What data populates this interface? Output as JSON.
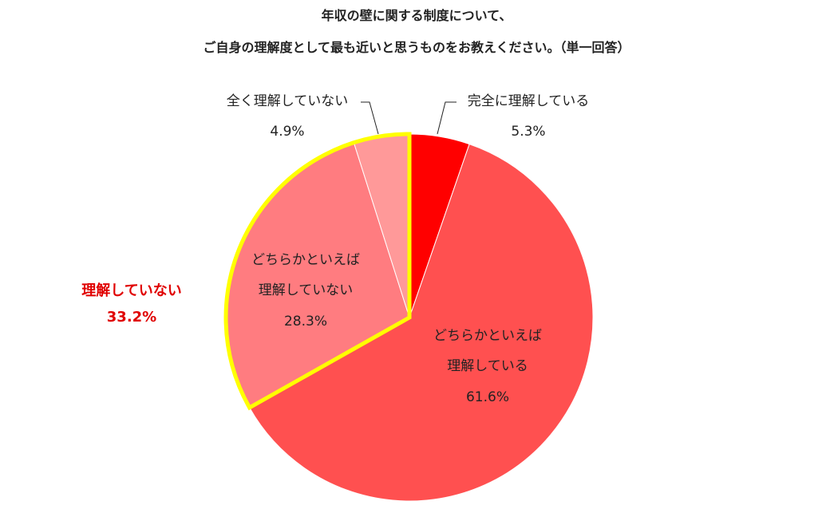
{
  "chart_data": {
    "type": "pie",
    "title": "年収の壁に関する制度について、\nご自身の理解度として最も近いと思うものをお教えください。（単一回答）",
    "categories": [
      "完全に理解している",
      "どちらかといえば\n理解している",
      "どちらかといえば\n理解していない",
      "全く理解していない"
    ],
    "values": [
      5.3,
      61.6,
      28.3,
      4.9
    ],
    "value_labels": [
      "5.3%",
      "61.6%",
      "28.3%",
      "4.9%"
    ],
    "colors": [
      "#ff0000",
      "#ff5050",
      "#ff7c80",
      "#ff9999"
    ],
    "highlight": {
      "label": "理解していない",
      "value": 33.2,
      "value_label": "33.2%",
      "color": "#ffff00",
      "text_color": "#e00000"
    }
  }
}
